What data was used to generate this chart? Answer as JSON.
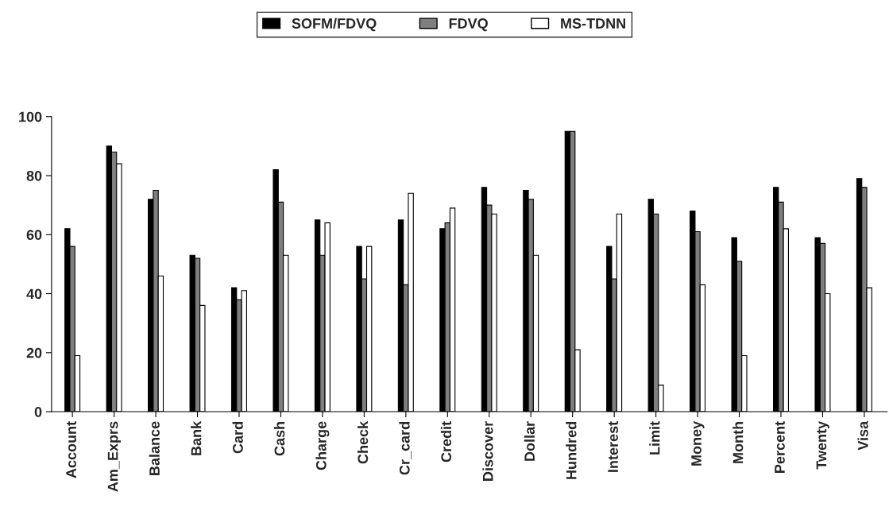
{
  "chart_data": {
    "type": "bar",
    "categories": [
      "Account",
      "Am_Exprs",
      "Balance",
      "Bank",
      "Card",
      "Cash",
      "Charge",
      "Check",
      "Cr_card",
      "Credit",
      "Discover",
      "Dollar",
      "Hundred",
      "Interest",
      "Limit",
      "Money",
      "Month",
      "Percent",
      "Twenty",
      "Visa"
    ],
    "series": [
      {
        "name": "SOFM/FDVQ",
        "color": "#000000",
        "values": [
          62,
          90,
          72,
          53,
          42,
          82,
          65,
          56,
          65,
          62,
          76,
          75,
          95,
          56,
          72,
          68,
          59,
          76,
          59,
          79
        ]
      },
      {
        "name": "FDVQ",
        "color": "#7f7f7f",
        "values": [
          56,
          88,
          75,
          52,
          38,
          71,
          53,
          45,
          43,
          64,
          70,
          72,
          95,
          45,
          67,
          61,
          51,
          71,
          57,
          76
        ]
      },
      {
        "name": "MS-TDNN",
        "color": "#ffffff",
        "values": [
          19,
          84,
          46,
          36,
          41,
          53,
          64,
          56,
          74,
          69,
          67,
          53,
          21,
          67,
          9,
          43,
          19,
          62,
          40,
          42
        ]
      }
    ],
    "ylim": [
      0,
      100
    ],
    "yticks": [
      0,
      20,
      40,
      60,
      80,
      100
    ],
    "grid": false,
    "legend": "top"
  }
}
